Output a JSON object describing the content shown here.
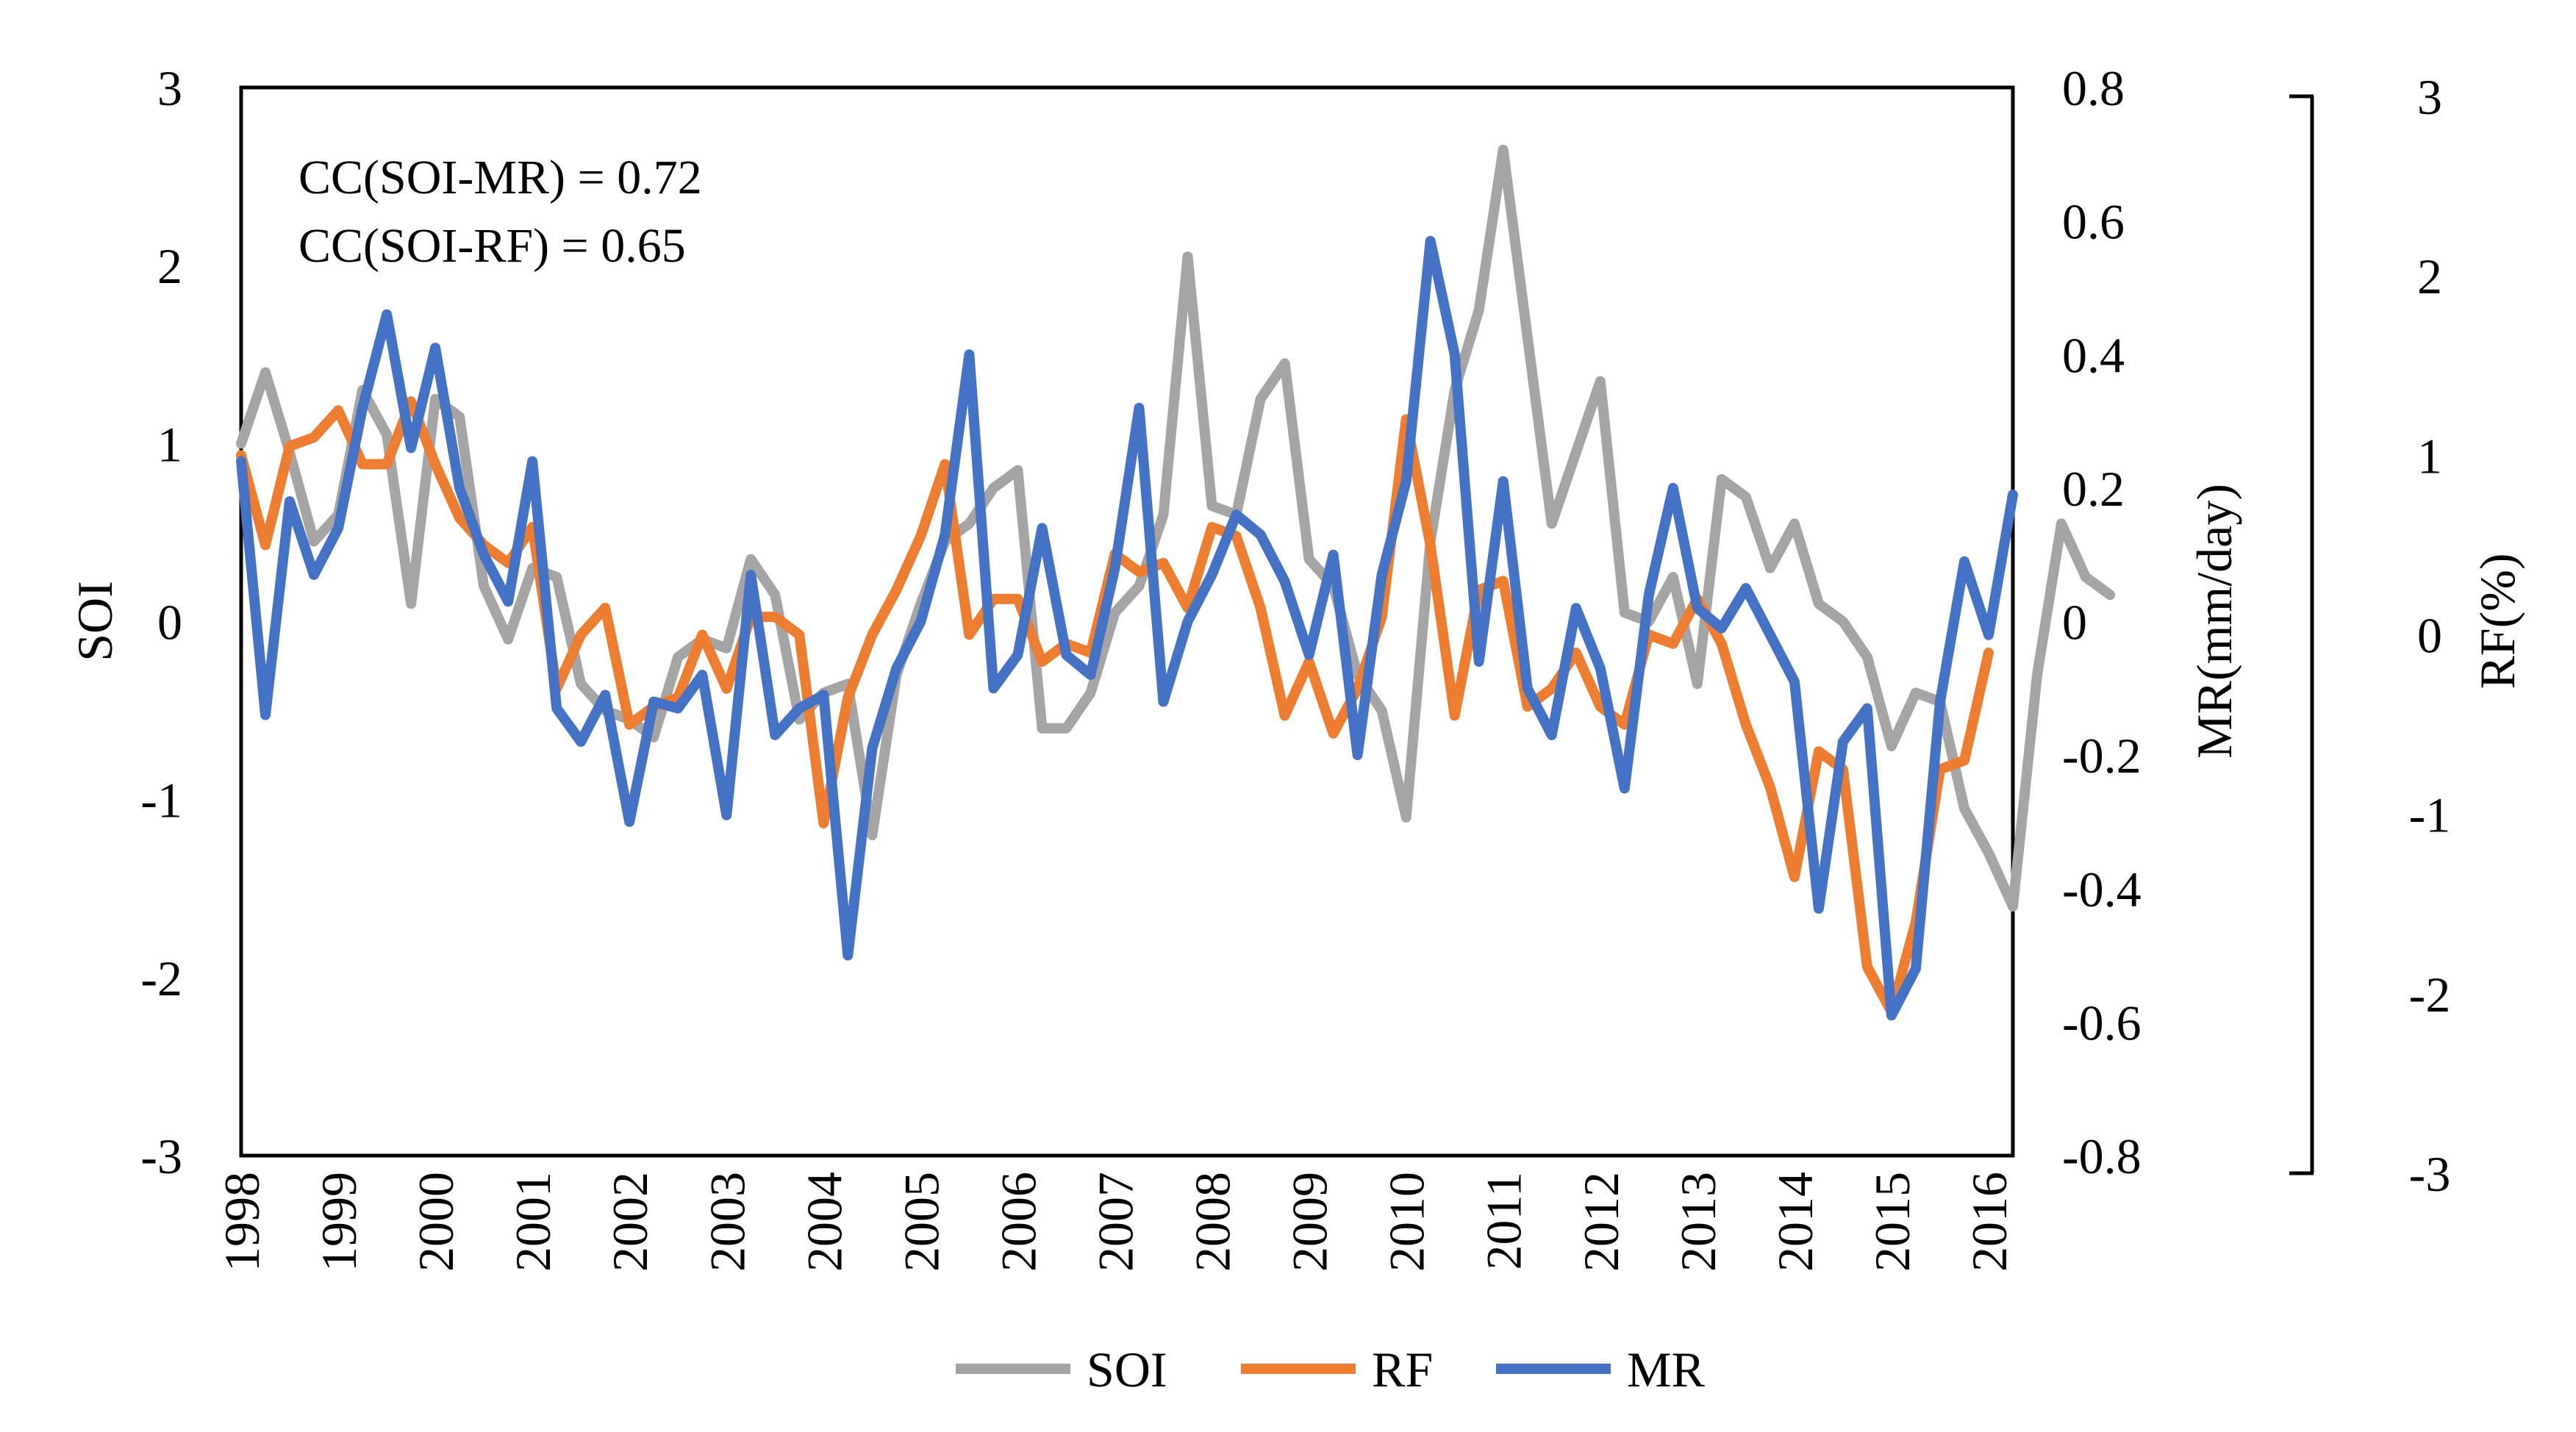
{
  "chart_data": {
    "type": "line",
    "title": "",
    "annotations": [
      "CC(SOI-MR) = 0.72",
      "CC(SOI-RF) = 0.65"
    ],
    "xlabel": "",
    "x_range": [
      1998,
      2016.25
    ],
    "x_ticks": [
      "1998",
      "1999",
      "2000",
      "2001",
      "2002",
      "2003",
      "2004",
      "2005",
      "2006",
      "2007",
      "2008",
      "2009",
      "2010",
      "2011",
      "2012",
      "2013",
      "2014",
      "2015",
      "2016"
    ],
    "axes": {
      "left": {
        "label": "SOI",
        "range": [
          -3,
          3
        ],
        "ticks": [
          "3",
          "2",
          "1",
          "0",
          "-1",
          "-2",
          "-3"
        ]
      },
      "right": {
        "label": "MR(mm/day)",
        "range": [
          -0.8,
          0.8
        ],
        "ticks": [
          "0.8",
          "0.6",
          "0.4",
          "0.2",
          "0",
          "-0.2",
          "-0.4",
          "-0.6",
          "-0.8"
        ]
      },
      "outer": {
        "label": "RF(%)",
        "range": [
          -3,
          3
        ],
        "ticks": [
          "3",
          "2",
          "1",
          "0",
          "-1",
          "-2",
          "-3"
        ]
      }
    },
    "legend": {
      "position": "bottom",
      "entries": [
        "SOI",
        "RF",
        "MR"
      ]
    },
    "colors": {
      "SOI": "#a5a5a5",
      "RF": "#ed7d31",
      "MR": "#4472c4"
    },
    "x_start": 1998,
    "x_step": 0.25,
    "series": [
      {
        "name": "SOI",
        "axis": "left",
        "values": [
          1.0,
          1.4,
          0.95,
          0.45,
          0.6,
          1.3,
          1.05,
          0.1,
          1.25,
          1.15,
          0.2,
          -0.1,
          0.3,
          0.25,
          -0.35,
          -0.5,
          -0.55,
          -0.65,
          -0.2,
          -0.1,
          -0.15,
          0.35,
          0.15,
          -0.55,
          -0.4,
          -0.35,
          -1.2,
          -0.3,
          0.1,
          0.45,
          0.55,
          0.75,
          0.85,
          -0.6,
          -0.6,
          -0.4,
          0.05,
          0.2,
          0.6,
          2.05,
          0.65,
          0.6,
          1.25,
          1.45,
          0.35,
          0.2,
          -0.3,
          -0.5,
          -1.1,
          0.45,
          1.3,
          1.75,
          2.65,
          1.6,
          0.55,
          0.95,
          1.35,
          0.05,
          0.0,
          0.25,
          -0.35,
          0.8,
          0.7,
          0.3,
          0.55,
          0.1,
          0.0,
          -0.2,
          -0.7,
          -0.4,
          -0.45,
          -1.05,
          -1.3,
          -1.6,
          -0.3,
          0.55,
          0.25,
          0.15
        ]
      },
      {
        "name": "RF",
        "axis": "outer",
        "values": [
          1.0,
          0.5,
          1.05,
          1.1,
          1.25,
          0.95,
          0.95,
          1.3,
          0.95,
          0.65,
          0.5,
          0.4,
          0.6,
          -0.3,
          0.0,
          0.15,
          -0.5,
          -0.4,
          -0.35,
          0.0,
          -0.3,
          0.1,
          0.1,
          -0.0,
          -1.05,
          -0.35,
          0.0,
          0.25,
          0.55,
          0.95,
          0.0,
          0.2,
          0.2,
          -0.15,
          -0.05,
          -0.1,
          0.45,
          0.35,
          0.4,
          0.15,
          0.6,
          0.55,
          0.15,
          -0.45,
          -0.15,
          -0.55,
          -0.3,
          0.1,
          1.2,
          0.5,
          -0.45,
          0.25,
          0.3,
          -0.4,
          -0.3,
          -0.1,
          -0.4,
          -0.5,
          0.0,
          -0.05,
          0.2,
          -0.05,
          -0.5,
          -0.85,
          -1.35,
          -0.65,
          -0.75,
          -1.85,
          -2.1,
          -1.6,
          -0.75,
          -0.7,
          -0.1
        ]
      },
      {
        "name": "MR",
        "axis": "right",
        "values": [
          0.24,
          -0.14,
          0.18,
          0.07,
          0.14,
          0.32,
          0.46,
          0.26,
          0.41,
          0.2,
          0.1,
          0.03,
          0.24,
          -0.13,
          -0.18,
          -0.11,
          -0.3,
          -0.12,
          -0.13,
          -0.08,
          -0.29,
          0.07,
          -0.17,
          -0.13,
          -0.11,
          -0.5,
          -0.19,
          -0.07,
          -0.0,
          0.13,
          0.4,
          -0.1,
          -0.05,
          0.14,
          -0.05,
          -0.08,
          0.08,
          0.32,
          -0.12,
          0.0,
          0.07,
          0.16,
          0.13,
          0.06,
          -0.05,
          0.1,
          -0.2,
          0.07,
          0.21,
          0.57,
          0.4,
          -0.06,
          0.21,
          -0.1,
          -0.17,
          0.02,
          -0.07,
          -0.25,
          0.04,
          0.2,
          0.02,
          -0.01,
          0.05,
          -0.02,
          -0.09,
          -0.43,
          -0.18,
          -0.13,
          -0.59,
          -0.52,
          -0.12,
          0.09,
          -0.02,
          0.19
        ]
      }
    ]
  }
}
